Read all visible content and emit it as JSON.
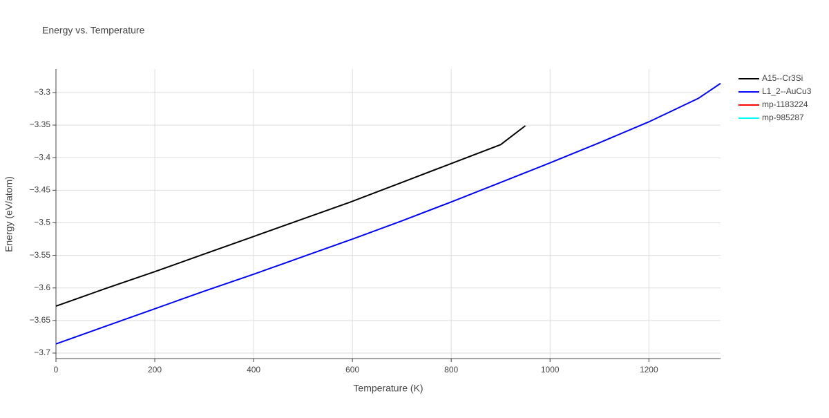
{
  "chart_data": {
    "type": "line",
    "title": "Energy vs. Temperature",
    "x_label": "Temperature (K)",
    "y_label": "Energy (eV/atom)",
    "xlim": [
      0,
      1345
    ],
    "xticks": [
      0,
      200,
      400,
      600,
      800,
      1000,
      1200
    ],
    "ylim": [
      -3.7085,
      -3.264
    ],
    "yticks": [
      {
        "value": -3.7,
        "label": "−3.7"
      },
      {
        "value": -3.65,
        "label": "−3.65"
      },
      {
        "value": -3.6,
        "label": "−3.6"
      },
      {
        "value": -3.55,
        "label": "−3.55"
      },
      {
        "value": -3.5,
        "label": "−3.5"
      },
      {
        "value": -3.45,
        "label": "−3.45"
      },
      {
        "value": -3.4,
        "label": "−3.4"
      },
      {
        "value": -3.35,
        "label": "−3.35"
      },
      {
        "value": -3.3,
        "label": "−3.3"
      }
    ],
    "grid": true,
    "series": [
      {
        "name": "A15--Cr3Si",
        "color": "#000000",
        "x": [
          0,
          100,
          200,
          300,
          400,
          500,
          600,
          700,
          800,
          900,
          950
        ],
        "values": [
          -3.628,
          -3.601,
          -3.575,
          -3.548,
          -3.521,
          -3.494,
          -3.467,
          -3.438,
          -3.409,
          -3.38,
          -3.351
        ]
      },
      {
        "name": "L1_2--AuCu3",
        "color": "#0000ff",
        "x": [
          0,
          100,
          200,
          300,
          400,
          500,
          600,
          700,
          800,
          900,
          1000,
          1100,
          1200,
          1300,
          1345
        ],
        "values": [
          -3.686,
          -3.659,
          -3.632,
          -3.605,
          -3.579,
          -3.552,
          -3.525,
          -3.497,
          -3.468,
          -3.438,
          -3.408,
          -3.377,
          -3.345,
          -3.309,
          -3.286
        ]
      },
      {
        "name": "mp-1183224",
        "color": "#ff0000",
        "x": [],
        "values": []
      },
      {
        "name": "mp-985287",
        "color": "#00ffff",
        "x": [],
        "values": []
      }
    ]
  }
}
